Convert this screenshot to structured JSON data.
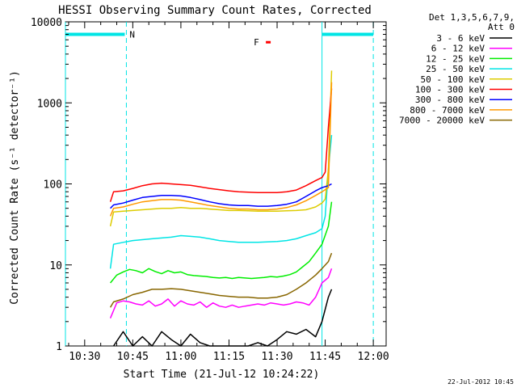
{
  "chart_data": {
    "type": "line",
    "title": "HESSI Observing Summary Count Rates, Corrected",
    "xlabel": "Start Time (21-Jul-12 10:24:22)",
    "ylabel": "Corrected Count Rate (s⁻¹ detector⁻¹)",
    "x_unit": "minutes after 10:24:22",
    "xlim": [
      0,
      100
    ],
    "ylim": [
      1,
      10000
    ],
    "yscale": "log",
    "xticks": [
      {
        "x": 6,
        "label": "10:30"
      },
      {
        "x": 21,
        "label": "10:45"
      },
      {
        "x": 36,
        "label": "11:00"
      },
      {
        "x": 51,
        "label": "11:15"
      },
      {
        "x": 66,
        "label": "11:30"
      },
      {
        "x": 81,
        "label": "11:45"
      },
      {
        "x": 96,
        "label": "12:00"
      }
    ],
    "yticks": [
      {
        "y": 1,
        "label": "1"
      },
      {
        "y": 10,
        "label": "10"
      },
      {
        "y": 100,
        "label": "100"
      },
      {
        "y": 1000,
        "label": "1000"
      },
      {
        "y": 10000,
        "label": "10000"
      }
    ],
    "legend": {
      "placement": "right",
      "header_line1": "Det 1,3,5,6,7,9,",
      "header_line2": "Att 0"
    },
    "annotations": {
      "night_label": "N",
      "flare_label": "F",
      "night_marker_color": "#00e5e5",
      "flare_marker_color": "#ff0000",
      "night_bar_value": 7000,
      "night_intervals": [
        [
          0,
          18.5
        ],
        [
          80,
          96
        ]
      ],
      "night_dashed_x": [
        19,
        96
      ],
      "night_solid_x": [
        0,
        80
      ],
      "flare_x": [
        62.5,
        64
      ],
      "flare_y": 5600
    },
    "timestamp": "22-Jul-2012 10:45",
    "series": [
      {
        "name": "3 - 6 keV",
        "color": "#000000",
        "points": [
          [
            15,
            1.0
          ],
          [
            18,
            1.5
          ],
          [
            21,
            1.0
          ],
          [
            24,
            1.3
          ],
          [
            27,
            1.0
          ],
          [
            30,
            1.5
          ],
          [
            33,
            1.2
          ],
          [
            36,
            1.0
          ],
          [
            39,
            1.4
          ],
          [
            42,
            1.1
          ],
          [
            45,
            1.0
          ],
          [
            48,
            1.0
          ],
          [
            51,
            1.0
          ],
          [
            54,
            1.0
          ],
          [
            57,
            1.0
          ],
          [
            60,
            1.1
          ],
          [
            63,
            1.0
          ],
          [
            66,
            1.2
          ],
          [
            69,
            1.5
          ],
          [
            72,
            1.4
          ],
          [
            75,
            1.6
          ],
          [
            78,
            1.3
          ],
          [
            80,
            2.0
          ],
          [
            82,
            4.0
          ],
          [
            83,
            5.0
          ]
        ]
      },
      {
        "name": "6 - 12 keV",
        "color": "#ff00ff",
        "points": [
          [
            14,
            2.2
          ],
          [
            16,
            3.4
          ],
          [
            18,
            3.6
          ],
          [
            20,
            3.5
          ],
          [
            22,
            3.3
          ],
          [
            24,
            3.2
          ],
          [
            26,
            3.6
          ],
          [
            28,
            3.1
          ],
          [
            30,
            3.3
          ],
          [
            32,
            3.8
          ],
          [
            34,
            3.1
          ],
          [
            36,
            3.6
          ],
          [
            38,
            3.3
          ],
          [
            40,
            3.2
          ],
          [
            42,
            3.5
          ],
          [
            44,
            3.0
          ],
          [
            46,
            3.4
          ],
          [
            48,
            3.1
          ],
          [
            50,
            3.0
          ],
          [
            52,
            3.2
          ],
          [
            54,
            3.0
          ],
          [
            56,
            3.1
          ],
          [
            58,
            3.2
          ],
          [
            60,
            3.3
          ],
          [
            62,
            3.2
          ],
          [
            64,
            3.4
          ],
          [
            66,
            3.3
          ],
          [
            68,
            3.2
          ],
          [
            70,
            3.3
          ],
          [
            72,
            3.5
          ],
          [
            74,
            3.4
          ],
          [
            76,
            3.2
          ],
          [
            78,
            4.0
          ],
          [
            80,
            6.0
          ],
          [
            82,
            7.0
          ],
          [
            83,
            9.0
          ]
        ]
      },
      {
        "name": "12 - 25 keV",
        "color": "#00ee00",
        "points": [
          [
            14,
            6.0
          ],
          [
            16,
            7.5
          ],
          [
            18,
            8.2
          ],
          [
            20,
            8.8
          ],
          [
            22,
            8.5
          ],
          [
            24,
            8.0
          ],
          [
            26,
            9.0
          ],
          [
            28,
            8.3
          ],
          [
            30,
            7.8
          ],
          [
            32,
            8.5
          ],
          [
            34,
            8.0
          ],
          [
            36,
            8.2
          ],
          [
            38,
            7.6
          ],
          [
            40,
            7.4
          ],
          [
            42,
            7.3
          ],
          [
            44,
            7.2
          ],
          [
            46,
            7.0
          ],
          [
            48,
            6.9
          ],
          [
            50,
            7.0
          ],
          [
            52,
            6.8
          ],
          [
            54,
            7.0
          ],
          [
            56,
            6.9
          ],
          [
            58,
            6.8
          ],
          [
            60,
            6.9
          ],
          [
            62,
            7.0
          ],
          [
            64,
            7.2
          ],
          [
            66,
            7.1
          ],
          [
            68,
            7.3
          ],
          [
            70,
            7.6
          ],
          [
            72,
            8.2
          ],
          [
            74,
            9.5
          ],
          [
            76,
            11
          ],
          [
            78,
            14
          ],
          [
            80,
            18
          ],
          [
            82,
            30
          ],
          [
            83,
            60
          ]
        ]
      },
      {
        "name": "25 - 50 keV",
        "color": "#00e5e5",
        "points": [
          [
            14,
            9.0
          ],
          [
            15,
            18
          ],
          [
            18,
            19
          ],
          [
            21,
            20
          ],
          [
            24,
            20.5
          ],
          [
            27,
            21
          ],
          [
            30,
            21.5
          ],
          [
            33,
            22
          ],
          [
            36,
            23
          ],
          [
            39,
            22.5
          ],
          [
            42,
            22
          ],
          [
            45,
            21
          ],
          [
            48,
            20
          ],
          [
            51,
            19.5
          ],
          [
            54,
            19
          ],
          [
            57,
            19
          ],
          [
            60,
            19
          ],
          [
            63,
            19.2
          ],
          [
            66,
            19.5
          ],
          [
            69,
            20
          ],
          [
            72,
            21
          ],
          [
            75,
            23
          ],
          [
            78,
            25
          ],
          [
            80,
            28
          ],
          [
            81,
            40
          ],
          [
            82,
            150
          ],
          [
            83,
            400
          ]
        ]
      },
      {
        "name": "50 - 100 keV",
        "color": "#ddcc00",
        "points": [
          [
            14,
            30
          ],
          [
            15,
            45
          ],
          [
            18,
            46
          ],
          [
            21,
            47
          ],
          [
            24,
            48
          ],
          [
            27,
            49
          ],
          [
            30,
            50
          ],
          [
            33,
            50
          ],
          [
            36,
            51
          ],
          [
            39,
            50
          ],
          [
            42,
            50
          ],
          [
            45,
            49
          ],
          [
            48,
            48
          ],
          [
            51,
            47
          ],
          [
            54,
            47
          ],
          [
            57,
            46.5
          ],
          [
            60,
            46
          ],
          [
            63,
            46
          ],
          [
            66,
            46
          ],
          [
            69,
            46.5
          ],
          [
            72,
            47
          ],
          [
            75,
            48
          ],
          [
            78,
            52
          ],
          [
            80,
            58
          ],
          [
            81,
            65
          ],
          [
            82,
            150
          ],
          [
            83,
            2500
          ]
        ]
      },
      {
        "name": "100 - 300 keV",
        "color": "#ff0000",
        "points": [
          [
            14,
            60
          ],
          [
            15,
            80
          ],
          [
            18,
            82
          ],
          [
            21,
            88
          ],
          [
            24,
            95
          ],
          [
            27,
            100
          ],
          [
            30,
            102
          ],
          [
            33,
            100
          ],
          [
            36,
            98
          ],
          [
            39,
            96
          ],
          [
            42,
            92
          ],
          [
            45,
            88
          ],
          [
            48,
            85
          ],
          [
            51,
            82
          ],
          [
            54,
            80
          ],
          [
            57,
            79
          ],
          [
            60,
            78
          ],
          [
            63,
            78
          ],
          [
            66,
            78
          ],
          [
            69,
            80
          ],
          [
            72,
            84
          ],
          [
            75,
            95
          ],
          [
            78,
            110
          ],
          [
            80,
            120
          ],
          [
            81,
            140
          ],
          [
            82,
            500
          ],
          [
            83,
            1500
          ]
        ]
      },
      {
        "name": "300 - 800 keV",
        "color": "#0000ff",
        "points": [
          [
            14,
            50
          ],
          [
            15,
            55
          ],
          [
            18,
            58
          ],
          [
            21,
            63
          ],
          [
            24,
            68
          ],
          [
            27,
            70
          ],
          [
            30,
            72
          ],
          [
            33,
            72
          ],
          [
            36,
            71
          ],
          [
            39,
            68
          ],
          [
            42,
            64
          ],
          [
            45,
            60
          ],
          [
            48,
            57
          ],
          [
            51,
            55
          ],
          [
            54,
            54
          ],
          [
            57,
            54
          ],
          [
            60,
            53
          ],
          [
            63,
            53
          ],
          [
            66,
            54
          ],
          [
            69,
            56
          ],
          [
            72,
            60
          ],
          [
            75,
            70
          ],
          [
            78,
            82
          ],
          [
            80,
            90
          ],
          [
            82,
            95
          ],
          [
            83,
            100
          ]
        ]
      },
      {
        "name": "800 - 7000 keV",
        "color": "#ff9900",
        "points": [
          [
            14,
            40
          ],
          [
            15,
            50
          ],
          [
            18,
            52
          ],
          [
            21,
            56
          ],
          [
            24,
            60
          ],
          [
            27,
            62
          ],
          [
            30,
            64
          ],
          [
            33,
            64
          ],
          [
            36,
            63
          ],
          [
            39,
            60
          ],
          [
            42,
            57
          ],
          [
            45,
            54
          ],
          [
            48,
            52
          ],
          [
            51,
            50
          ],
          [
            54,
            49
          ],
          [
            57,
            49
          ],
          [
            60,
            48
          ],
          [
            63,
            48
          ],
          [
            66,
            49
          ],
          [
            69,
            51
          ],
          [
            72,
            55
          ],
          [
            75,
            62
          ],
          [
            78,
            72
          ],
          [
            80,
            80
          ],
          [
            82,
            90
          ],
          [
            83,
            1800
          ]
        ]
      },
      {
        "name": "7000 - 20000 keV",
        "color": "#886600",
        "points": [
          [
            14,
            3.0
          ],
          [
            15,
            3.5
          ],
          [
            18,
            3.8
          ],
          [
            21,
            4.3
          ],
          [
            24,
            4.6
          ],
          [
            27,
            5.0
          ],
          [
            30,
            5.0
          ],
          [
            33,
            5.1
          ],
          [
            36,
            5.0
          ],
          [
            39,
            4.8
          ],
          [
            42,
            4.6
          ],
          [
            45,
            4.4
          ],
          [
            48,
            4.2
          ],
          [
            51,
            4.1
          ],
          [
            54,
            4.0
          ],
          [
            57,
            4.0
          ],
          [
            60,
            3.9
          ],
          [
            63,
            3.9
          ],
          [
            66,
            4.0
          ],
          [
            69,
            4.3
          ],
          [
            72,
            5.0
          ],
          [
            75,
            6.0
          ],
          [
            78,
            7.5
          ],
          [
            80,
            9.0
          ],
          [
            82,
            11
          ],
          [
            83,
            14
          ]
        ]
      }
    ]
  }
}
